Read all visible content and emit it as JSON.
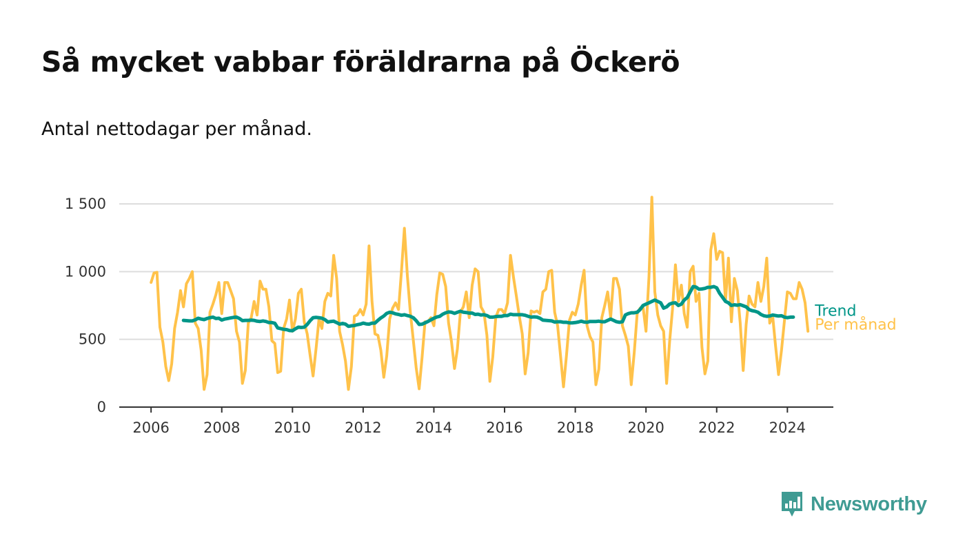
{
  "title": "Så mycket vabbar föräldrarna på Öckerö",
  "subtitle": "Antal nettodagar per månad.",
  "brand": "Newsworthy",
  "colors": {
    "monthly": "#ffc24a",
    "trend": "#009688",
    "brand": "#3f9b93",
    "grid": "#dddddd",
    "axis": "#333333"
  },
  "chart_data": {
    "type": "line",
    "x_axis": {
      "ticks": [
        "2006",
        "2008",
        "2010",
        "2012",
        "2014",
        "2016",
        "2018",
        "2020",
        "2022",
        "2024"
      ],
      "range": [
        2005.1,
        2025.3
      ]
    },
    "y_axis": {
      "ticks": [
        0,
        500,
        1000,
        1500
      ],
      "tick_labels": [
        "0",
        "500",
        "1 000",
        "1 500"
      ],
      "range": [
        0,
        1500
      ]
    },
    "grid": true,
    "series": [
      {
        "name": "Per månad",
        "color": "#ffc24a",
        "start": "2006-01",
        "values": [
          920,
          990,
          995,
          590,
          480,
          300,
          195,
          320,
          580,
          700,
          860,
          740,
          910,
          950,
          1000,
          620,
          580,
          420,
          130,
          240,
          700,
          760,
          830,
          920,
          690,
          920,
          920,
          860,
          800,
          560,
          480,
          175,
          270,
          620,
          660,
          780,
          680,
          930,
          870,
          870,
          740,
          490,
          470,
          255,
          265,
          580,
          650,
          790,
          560,
          650,
          840,
          870,
          630,
          540,
          380,
          230,
          430,
          650,
          580,
          780,
          840,
          820,
          1120,
          950,
          560,
          460,
          340,
          130,
          300,
          670,
          680,
          720,
          680,
          760,
          1190,
          780,
          540,
          530,
          420,
          220,
          380,
          650,
          730,
          770,
          720,
          1000,
          1320,
          970,
          700,
          500,
          290,
          135,
          370,
          630,
          630,
          660,
          600,
          830,
          990,
          980,
          890,
          620,
          480,
          285,
          430,
          700,
          740,
          850,
          660,
          900,
          1020,
          1000,
          740,
          700,
          530,
          190,
          370,
          660,
          720,
          720,
          690,
          770,
          1120,
          960,
          820,
          670,
          540,
          245,
          400,
          710,
          700,
          710,
          690,
          850,
          870,
          1000,
          1010,
          700,
          600,
          380,
          150,
          380,
          640,
          700,
          680,
          760,
          900,
          1010,
          600,
          520,
          480,
          165,
          280,
          660,
          750,
          850,
          660,
          950,
          950,
          870,
          600,
          530,
          450,
          165,
          400,
          690,
          730,
          740,
          560,
          960,
          1550,
          850,
          680,
          600,
          560,
          175,
          480,
          720,
          1050,
          780,
          900,
          690,
          590,
          1000,
          1040,
          780,
          840,
          440,
          245,
          340,
          1160,
          1280,
          1090,
          1150,
          1140,
          780,
          1100,
          630,
          950,
          860,
          620,
          270,
          610,
          820,
          760,
          740,
          920,
          780,
          890,
          1100,
          620,
          670,
          450,
          240,
          420,
          640,
          850,
          840,
          800,
          800,
          920,
          870,
          770,
          560
        ]
      },
      {
        "name": "Trend",
        "color": "#009688",
        "start": "2006-12",
        "values": [
          640,
          638,
          636,
          636,
          644,
          656,
          650,
          646,
          654,
          660,
          664,
          654,
          656,
          642,
          650,
          654,
          658,
          662,
          664,
          654,
          638,
          640,
          640,
          642,
          640,
          634,
          632,
          636,
          632,
          624,
          624,
          619,
          584,
          579,
          574,
          572,
          565,
          564,
          578,
          590,
          588,
          590,
          610,
          638,
          660,
          662,
          660,
          656,
          646,
          628,
          632,
          634,
          624,
          612,
          618,
          612,
          596,
          600,
          602,
          608,
          612,
          620,
          614,
          612,
          620,
          620,
          640,
          658,
          672,
          692,
          700,
          696,
          688,
          684,
          678,
          682,
          676,
          670,
          660,
          638,
          610,
          612,
          622,
          632,
          644,
          656,
          665,
          670,
          686,
          696,
          702,
          700,
          692,
          700,
          708,
          700,
          698,
          694,
          694,
          684,
          686,
          680,
          682,
          676,
          664,
          664,
          668,
          670,
          670,
          676,
          676,
          686,
          682,
          682,
          682,
          682,
          678,
          670,
          664,
          666,
          664,
          656,
          642,
          640,
          638,
          636,
          628,
          630,
          630,
          626,
          626,
          622,
          622,
          624,
          628,
          634,
          628,
          626,
          632,
          632,
          632,
          634,
          630,
          630,
          640,
          650,
          640,
          630,
          626,
          630,
          680,
          690,
          696,
          696,
          700,
          720,
          750,
          760,
          770,
          780,
          790,
          780,
          770,
          730,
          740,
          760,
          768,
          770,
          750,
          760,
          790,
          808,
          850,
          890,
          886,
          870,
          872,
          876,
          884,
          884,
          890,
          880,
          840,
          810,
          780,
          770,
          750,
          755,
          752,
          756,
          748,
          740,
          720,
          712,
          708,
          700,
          684,
          674,
          670,
          672,
          680,
          676,
          672,
          674,
          664,
          660,
          664,
          664
        ]
      }
    ]
  }
}
